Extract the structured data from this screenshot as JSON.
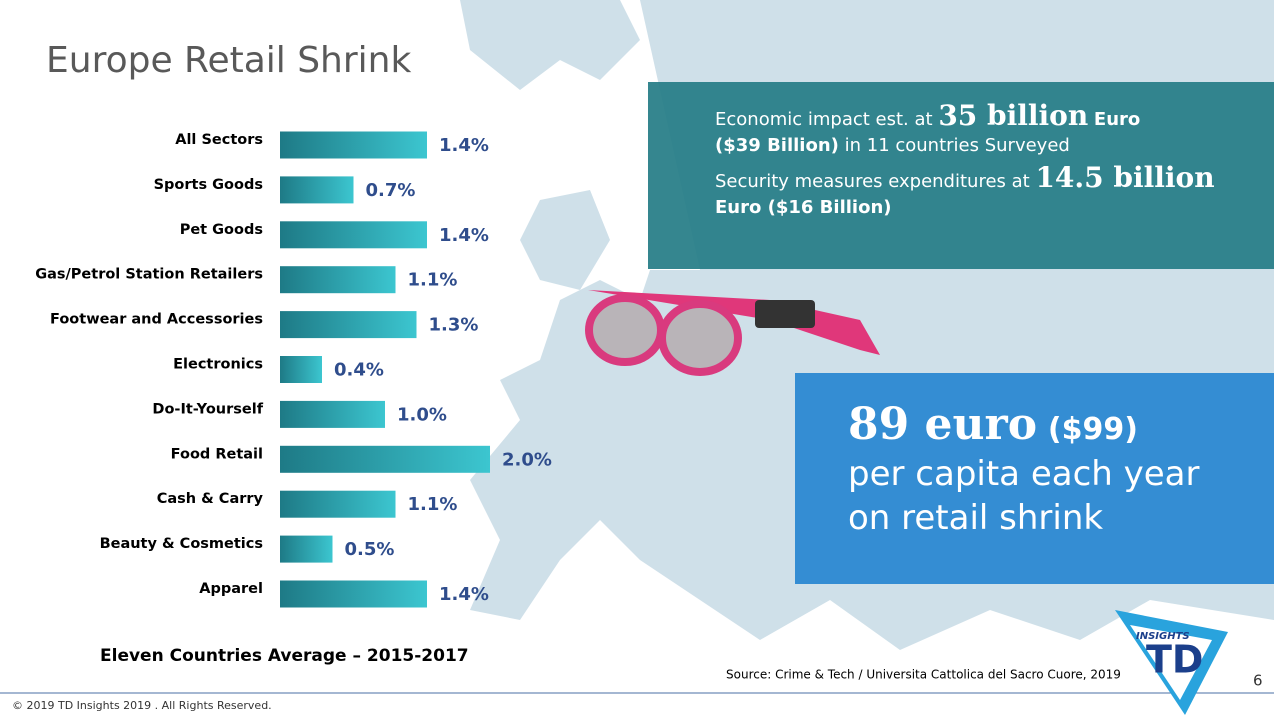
{
  "chart_data": {
    "type": "bar",
    "orientation": "horizontal",
    "title": "Europe Retail Shrink",
    "subtitle": "Eleven Countries Average – 2015-2017",
    "categories": [
      "All Sectors",
      "Sports Goods",
      "Pet Goods",
      "Gas/Petrol Station Retailers",
      "Footwear and Accessories",
      "Electronics",
      "Do-It-Yourself",
      "Food Retail",
      "Cash & Carry",
      "Beauty & Cosmetics",
      "Apparel"
    ],
    "values": [
      1.4,
      0.7,
      1.4,
      1.1,
      1.3,
      0.4,
      1.0,
      2.0,
      1.1,
      0.5,
      1.4
    ],
    "value_labels": [
      "1.4%",
      "0.7%",
      "1.4%",
      "1.1%",
      "1.3%",
      "0.4%",
      "1.0%",
      "2.0%",
      "1.1%",
      "0.5%",
      "1.4%"
    ],
    "color": "#1e7a86"
  },
  "impact": [
    "Economic impact est. at",
    "35 billion",
    "Euro",
    "($39 Billion)",
    "in 11 countries Surveyed",
    "Security measures expenditures at",
    "14.5 billion",
    "Euro ($16 Billion)"
  ],
  "per_capita": [
    "89 euro",
    "($99)",
    "per capita each year",
    "on retail shrink"
  ],
  "footer": {
    "copyright": "© 2019 TD Insights 2019 . All Rights Reserved.",
    "page": "6",
    "source": "Source: Crime & Tech / Universita Cattolica del Sacro Cuore, 2019"
  },
  "logo": {
    "small": "INSIGHTS",
    "big": "TD"
  }
}
